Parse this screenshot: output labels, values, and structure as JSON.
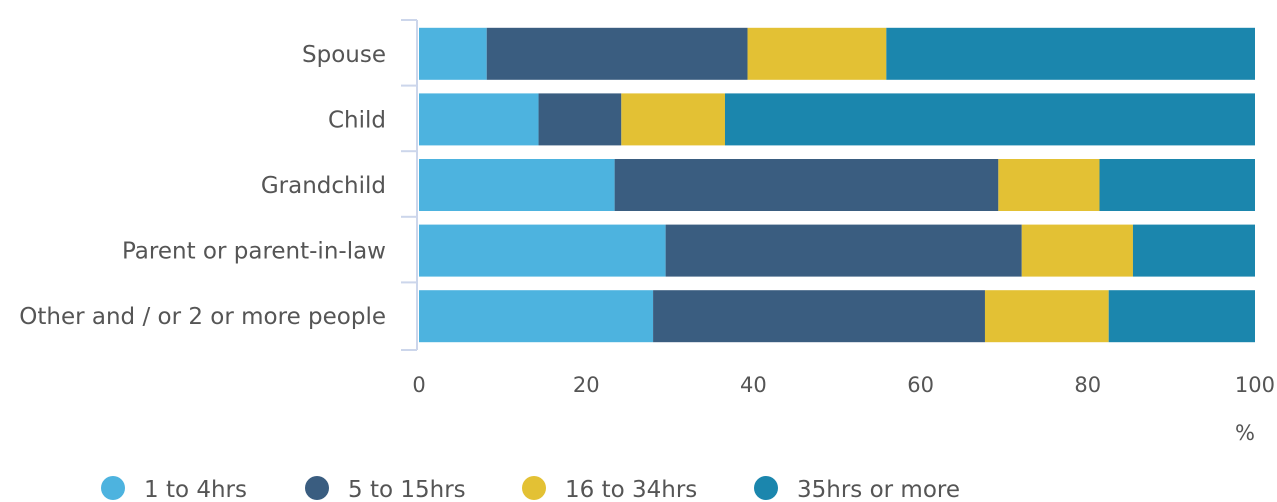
{
  "chart_data": {
    "type": "bar",
    "orientation": "horizontal",
    "stacked": true,
    "categories": [
      "Spouse",
      "Child",
      "Grandchild",
      "Parent or parent-in-law",
      "Other and / or 2 or more people"
    ],
    "series": [
      {
        "name": "1 to 4hrs",
        "color": "#4db3df",
        "values": [
          8.1,
          14.3,
          23.4,
          29.5,
          28.0
        ]
      },
      {
        "name": "5 to 15hrs",
        "color": "#3a5d80",
        "values": [
          31.2,
          9.9,
          45.9,
          42.6,
          39.7
        ]
      },
      {
        "name": "16 to 34hrs",
        "color": "#e3c134",
        "values": [
          16.6,
          12.4,
          12.1,
          13.3,
          14.8
        ]
      },
      {
        "name": "35hrs or more",
        "color": "#1b86ad",
        "values": [
          44.1,
          63.4,
          18.6,
          14.6,
          17.5
        ]
      }
    ],
    "xlim": [
      0,
      100
    ],
    "xticks": [
      "0",
      "20",
      "40",
      "60",
      "80",
      "100"
    ],
    "xunit": "%",
    "legend_position": "bottom-left",
    "grid": false
  }
}
